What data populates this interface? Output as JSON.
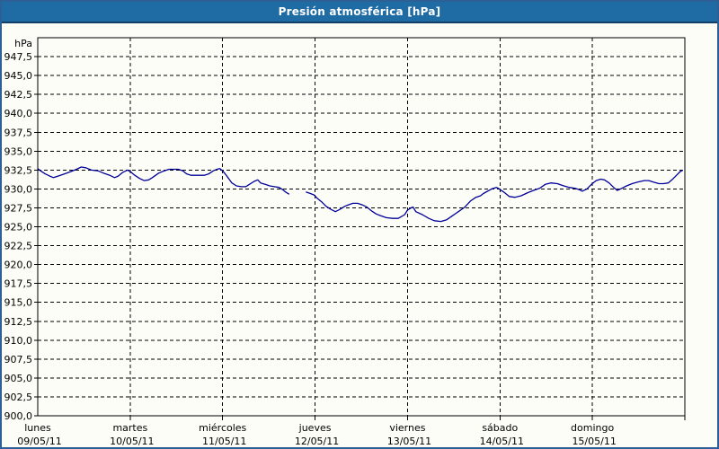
{
  "window": {
    "title": "Presión atmosférica [hPa]"
  },
  "colors": {
    "titlebar_bg": "#1f6ba3",
    "titlebar_text": "#ffffff",
    "titlebar_border": "#123f68",
    "window_border": "#2d6095",
    "background": "#fdfdf8",
    "plot_border": "#000000",
    "grid": "#000000",
    "axis_text": "#000000",
    "line": "#000099"
  },
  "chart_data": {
    "type": "line",
    "title": "Presión atmosférica [hPa]",
    "grid": true,
    "legend_position": "none",
    "y_axis": {
      "label": "hPa",
      "min": 900,
      "max": 950,
      "tick_step": 2.5,
      "ticks": [
        {
          "value": 947.5,
          "label": "947,5"
        },
        {
          "value": 945.0,
          "label": "945,0"
        },
        {
          "value": 942.5,
          "label": "942,5"
        },
        {
          "value": 940.0,
          "label": "940,0"
        },
        {
          "value": 937.5,
          "label": "937,5"
        },
        {
          "value": 935.0,
          "label": "935,0"
        },
        {
          "value": 932.5,
          "label": "932,5"
        },
        {
          "value": 930.0,
          "label": "930,0"
        },
        {
          "value": 927.5,
          "label": "927,5"
        },
        {
          "value": 925.0,
          "label": "925,0"
        },
        {
          "value": 922.5,
          "label": "922,5"
        },
        {
          "value": 920.0,
          "label": "920,0"
        },
        {
          "value": 917.5,
          "label": "917,5"
        },
        {
          "value": 915.0,
          "label": "915,0"
        },
        {
          "value": 912.5,
          "label": "912,5"
        },
        {
          "value": 910.0,
          "label": "910,0"
        },
        {
          "value": 907.5,
          "label": "907,5"
        },
        {
          "value": 905.0,
          "label": "905,0"
        },
        {
          "value": 902.5,
          "label": "902,5"
        },
        {
          "value": 900.0,
          "label": "900,0"
        }
      ]
    },
    "x_axis": {
      "unit": "day",
      "num_days": 7,
      "labels": [
        {
          "name": "lunes",
          "date": "09/05/11"
        },
        {
          "name": "martes",
          "date": "10/05/11"
        },
        {
          "name": "miércoles",
          "date": "11/05/11"
        },
        {
          "name": "jueves",
          "date": "12/05/11"
        },
        {
          "name": "viernes",
          "date": "13/05/11"
        },
        {
          "name": "sábado",
          "date": "14/05/11"
        },
        {
          "name": "domingo",
          "date": "15/05/11"
        }
      ]
    },
    "series": [
      {
        "name": "Presión atmosférica",
        "unit": "hPa",
        "color": "#000099",
        "segments": [
          [
            [
              0.0,
              932.7
            ],
            [
              0.03,
              932.4
            ],
            [
              0.08,
              932.0
            ],
            [
              0.13,
              931.7
            ],
            [
              0.17,
              931.5
            ],
            [
              0.22,
              931.7
            ],
            [
              0.29,
              932.0
            ],
            [
              0.36,
              932.3
            ],
            [
              0.42,
              932.6
            ],
            [
              0.47,
              932.9
            ],
            [
              0.52,
              932.8
            ],
            [
              0.58,
              932.5
            ],
            [
              0.65,
              932.4
            ],
            [
              0.71,
              932.1
            ],
            [
              0.78,
              931.8
            ],
            [
              0.83,
              931.5
            ],
            [
              0.87,
              931.7
            ],
            [
              0.92,
              932.2
            ],
            [
              0.97,
              932.5
            ],
            [
              1.0,
              932.3
            ],
            [
              1.05,
              931.8
            ],
            [
              1.1,
              931.4
            ],
            [
              1.15,
              931.1
            ],
            [
              1.2,
              931.2
            ],
            [
              1.24,
              931.5
            ],
            [
              1.31,
              932.1
            ],
            [
              1.37,
              932.4
            ],
            [
              1.42,
              932.6
            ],
            [
              1.52,
              932.6
            ],
            [
              1.57,
              932.4
            ],
            [
              1.61,
              932.0
            ],
            [
              1.66,
              931.8
            ],
            [
              1.8,
              931.8
            ],
            [
              1.85,
              932.0
            ],
            [
              1.9,
              932.4
            ],
            [
              1.94,
              932.6
            ],
            [
              1.97,
              932.7
            ],
            [
              2.0,
              932.4
            ],
            [
              2.04,
              931.8
            ],
            [
              2.07,
              931.3
            ],
            [
              2.1,
              930.8
            ],
            [
              2.15,
              930.4
            ],
            [
              2.2,
              930.3
            ],
            [
              2.25,
              930.3
            ],
            [
              2.29,
              930.6
            ],
            [
              2.34,
              931.0
            ],
            [
              2.38,
              931.2
            ],
            [
              2.41,
              930.8
            ],
            [
              2.46,
              930.6
            ],
            [
              2.51,
              930.4
            ],
            [
              2.56,
              930.3
            ],
            [
              2.61,
              930.2
            ],
            [
              2.65,
              929.9
            ],
            [
              2.68,
              929.6
            ],
            [
              2.72,
              929.3
            ]
          ],
          [
            [
              2.9,
              929.6
            ],
            [
              2.95,
              929.4
            ],
            [
              2.99,
              929.2
            ],
            [
              3.02,
              928.8
            ],
            [
              3.07,
              928.3
            ],
            [
              3.12,
              927.7
            ],
            [
              3.17,
              927.3
            ],
            [
              3.22,
              927.0
            ],
            [
              3.27,
              927.3
            ],
            [
              3.32,
              927.7
            ],
            [
              3.36,
              927.9
            ],
            [
              3.41,
              928.1
            ],
            [
              3.46,
              928.1
            ],
            [
              3.51,
              927.9
            ],
            [
              3.56,
              927.6
            ],
            [
              3.61,
              927.1
            ],
            [
              3.66,
              926.7
            ],
            [
              3.7,
              926.5
            ],
            [
              3.77,
              926.2
            ],
            [
              3.84,
              926.1
            ],
            [
              3.9,
              926.1
            ],
            [
              3.97,
              926.6
            ],
            [
              4.0,
              927.2
            ],
            [
              4.04,
              927.5
            ],
            [
              4.06,
              927.6
            ],
            [
              4.09,
              927.0
            ],
            [
              4.16,
              926.6
            ],
            [
              4.23,
              926.1
            ],
            [
              4.29,
              925.8
            ],
            [
              4.36,
              925.7
            ],
            [
              4.42,
              925.9
            ],
            [
              4.48,
              926.4
            ],
            [
              4.55,
              927.0
            ],
            [
              4.62,
              927.6
            ],
            [
              4.68,
              928.4
            ],
            [
              4.74,
              928.9
            ],
            [
              4.79,
              929.1
            ],
            [
              4.82,
              929.4
            ],
            [
              4.91,
              930.0
            ],
            [
              4.96,
              930.2
            ],
            [
              4.98,
              930.1
            ],
            [
              5.04,
              929.6
            ],
            [
              5.1,
              929.0
            ],
            [
              5.16,
              928.9
            ],
            [
              5.23,
              929.1
            ],
            [
              5.3,
              929.5
            ],
            [
              5.36,
              929.8
            ],
            [
              5.43,
              930.1
            ],
            [
              5.49,
              930.6
            ],
            [
              5.55,
              930.8
            ],
            [
              5.62,
              930.7
            ],
            [
              5.69,
              930.4
            ],
            [
              5.75,
              930.2
            ],
            [
              5.81,
              930.1
            ],
            [
              5.86,
              929.9
            ],
            [
              5.89,
              929.7
            ],
            [
              5.94,
              930.0
            ],
            [
              5.99,
              930.6
            ],
            [
              6.04,
              931.1
            ],
            [
              6.09,
              931.3
            ],
            [
              6.13,
              931.2
            ],
            [
              6.18,
              930.8
            ],
            [
              6.23,
              930.2
            ],
            [
              6.27,
              929.8
            ],
            [
              6.32,
              930.1
            ],
            [
              6.37,
              930.4
            ],
            [
              6.43,
              930.7
            ],
            [
              6.49,
              930.9
            ],
            [
              6.56,
              931.1
            ],
            [
              6.61,
              931.1
            ],
            [
              6.66,
              930.9
            ],
            [
              6.72,
              930.7
            ],
            [
              6.77,
              930.7
            ],
            [
              6.82,
              930.8
            ],
            [
              6.86,
              931.2
            ],
            [
              6.91,
              931.8
            ],
            [
              6.95,
              932.3
            ],
            [
              6.98,
              932.5
            ]
          ]
        ]
      }
    ]
  }
}
